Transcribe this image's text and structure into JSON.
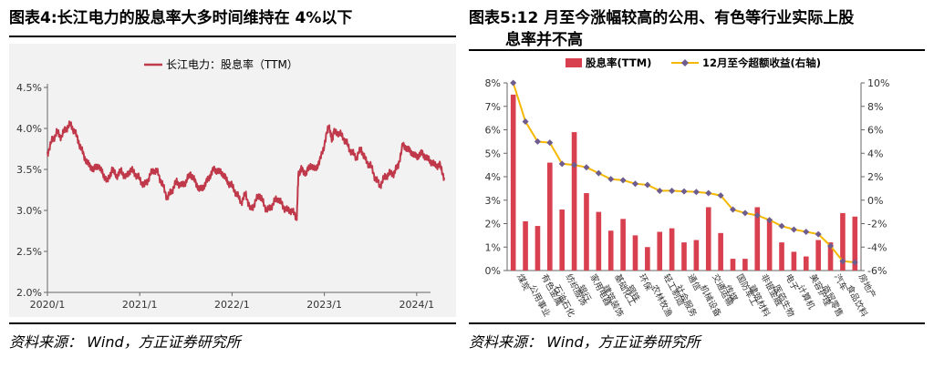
{
  "left_panel": {
    "title": "图表4:长江电力的股息率大多时间维持在 4%以下",
    "source": "资料来源： Wind，方正证券研究所"
  },
  "right_panel": {
    "title_line1": "图表5:12 月至今涨幅较高的公用、有色等行业实际上股",
    "title_line2": "息率并不高",
    "source": "资料来源： Wind，方正证券研究所"
  },
  "colors": {
    "line_red": "#c0394b",
    "bar_red": "#d9404f",
    "line_yellow": "#f5b800",
    "marker": "#6e5c8f",
    "plot_bg": "#f2f2f2"
  },
  "chart_data": [
    {
      "type": "line",
      "series": [
        {
          "name": "长江电力：股息率（TTM）",
          "points": [
            [
              2020.0,
              3.7
            ],
            [
              2020.05,
              3.85
            ],
            [
              2020.1,
              3.95
            ],
            [
              2020.15,
              3.9
            ],
            [
              2020.2,
              4.0
            ],
            [
              2020.25,
              4.05
            ],
            [
              2020.3,
              3.95
            ],
            [
              2020.35,
              3.8
            ],
            [
              2020.4,
              3.65
            ],
            [
              2020.45,
              3.55
            ],
            [
              2020.5,
              3.5
            ],
            [
              2020.55,
              3.55
            ],
            [
              2020.6,
              3.45
            ],
            [
              2020.65,
              3.35
            ],
            [
              2020.7,
              3.5
            ],
            [
              2020.75,
              3.42
            ],
            [
              2020.8,
              3.48
            ],
            [
              2020.85,
              3.4
            ],
            [
              2020.9,
              3.5
            ],
            [
              2020.95,
              3.45
            ],
            [
              2021.0,
              3.38
            ],
            [
              2021.05,
              3.3
            ],
            [
              2021.1,
              3.4
            ],
            [
              2021.15,
              3.5
            ],
            [
              2021.2,
              3.45
            ],
            [
              2021.25,
              3.3
            ],
            [
              2021.3,
              3.15
            ],
            [
              2021.35,
              3.25
            ],
            [
              2021.4,
              3.35
            ],
            [
              2021.45,
              3.3
            ],
            [
              2021.5,
              3.35
            ],
            [
              2021.55,
              3.45
            ],
            [
              2021.6,
              3.35
            ],
            [
              2021.65,
              3.25
            ],
            [
              2021.7,
              3.3
            ],
            [
              2021.75,
              3.4
            ],
            [
              2021.8,
              3.5
            ],
            [
              2021.85,
              3.48
            ],
            [
              2021.9,
              3.45
            ],
            [
              2021.95,
              3.35
            ],
            [
              2022.0,
              3.3
            ],
            [
              2022.05,
              3.2
            ],
            [
              2022.1,
              3.1
            ],
            [
              2022.15,
              3.2
            ],
            [
              2022.2,
              3.0
            ],
            [
              2022.25,
              3.1
            ],
            [
              2022.3,
              3.2
            ],
            [
              2022.35,
              3.05
            ],
            [
              2022.4,
              3.0
            ],
            [
              2022.45,
              3.1
            ],
            [
              2022.5,
              3.15
            ],
            [
              2022.55,
              3.05
            ],
            [
              2022.6,
              3.0
            ],
            [
              2022.65,
              3.0
            ],
            [
              2022.7,
              2.9
            ],
            [
              2022.72,
              3.45
            ],
            [
              2022.75,
              3.5
            ],
            [
              2022.8,
              3.45
            ],
            [
              2022.85,
              3.55
            ],
            [
              2022.9,
              3.5
            ],
            [
              2022.95,
              3.6
            ],
            [
              2023.0,
              3.8
            ],
            [
              2023.05,
              4.05
            ],
            [
              2023.08,
              3.85
            ],
            [
              2023.1,
              3.95
            ],
            [
              2023.15,
              3.95
            ],
            [
              2023.2,
              3.9
            ],
            [
              2023.25,
              3.8
            ],
            [
              2023.3,
              3.7
            ],
            [
              2023.35,
              3.65
            ],
            [
              2023.4,
              3.75
            ],
            [
              2023.45,
              3.6
            ],
            [
              2023.5,
              3.55
            ],
            [
              2023.55,
              3.4
            ],
            [
              2023.6,
              3.3
            ],
            [
              2023.65,
              3.4
            ],
            [
              2023.7,
              3.45
            ],
            [
              2023.75,
              3.45
            ],
            [
              2023.8,
              3.55
            ],
            [
              2023.85,
              3.8
            ],
            [
              2023.9,
              3.75
            ],
            [
              2023.95,
              3.7
            ],
            [
              2024.0,
              3.65
            ],
            [
              2024.05,
              3.7
            ],
            [
              2024.1,
              3.65
            ],
            [
              2024.15,
              3.6
            ],
            [
              2024.2,
              3.55
            ],
            [
              2024.25,
              3.55
            ],
            [
              2024.3,
              3.4
            ]
          ]
        }
      ],
      "x_tick_labels": [
        "2020/1",
        "2021/1",
        "2022/1",
        "2023/1",
        "2024/1"
      ],
      "x_ticks": [
        2020,
        2021,
        2022,
        2023,
        2024
      ],
      "xlim": [
        2020,
        2024.15
      ],
      "y_tick_labels": [
        "2.0%",
        "2.5%",
        "3.0%",
        "3.5%",
        "4.0%",
        "4.5%"
      ],
      "y_ticks": [
        2.0,
        2.5,
        3.0,
        3.5,
        4.0,
        4.5
      ],
      "ylim": [
        2.0,
        4.5
      ],
      "legend_position": "top-center",
      "grid": false
    },
    {
      "type": "bar",
      "categories": [
        "煤炭",
        "公用事业",
        "有色金属",
        "石油石化",
        "纺织服饰",
        "银行",
        "家用电器",
        "建筑装饰",
        "基础化工",
        "钢铁",
        "环保",
        "农林牧渔",
        "轻工制造",
        "社会服务",
        "通信",
        "机械设备",
        "交通运输",
        "传媒",
        "国防军工",
        "建筑材料",
        "非银金融",
        "医药生物",
        "电子",
        "计算机",
        "美容护理",
        "商贸零售",
        "汽车",
        "食品饮料",
        "房地产"
      ],
      "series": [
        {
          "name": "股息率(TTM)",
          "axis": "left",
          "type": "bar",
          "values": [
            7.5,
            2.1,
            1.9,
            4.6,
            2.6,
            5.9,
            3.3,
            2.5,
            1.7,
            2.2,
            1.5,
            1.0,
            1.65,
            1.8,
            1.2,
            1.3,
            2.7,
            1.6,
            0.5,
            0.5,
            2.7,
            2.2,
            1.2,
            0.8,
            0.6,
            1.3,
            1.2,
            2.45,
            2.3
          ]
        },
        {
          "name": "12月至今超额收益(右轴)",
          "axis": "right",
          "type": "line",
          "values": [
            10.0,
            6.7,
            5.0,
            4.9,
            3.1,
            3.0,
            2.8,
            2.3,
            1.8,
            1.7,
            1.4,
            1.3,
            0.8,
            0.8,
            0.75,
            0.7,
            0.6,
            0.4,
            -0.8,
            -1.1,
            -1.3,
            -1.7,
            -2.2,
            -2.5,
            -2.7,
            -2.9,
            -3.9,
            -5.2,
            -5.3
          ]
        }
      ],
      "y_left_tick_labels": [
        "0%",
        "1%",
        "2%",
        "3%",
        "4%",
        "5%",
        "6%",
        "7%",
        "8%"
      ],
      "ylim_left": [
        0,
        8
      ],
      "y_right_tick_labels": [
        "-6%",
        "-4%",
        "-2%",
        "0%",
        "2%",
        "4%",
        "6%",
        "8%",
        "10%"
      ],
      "ylim_right": [
        -6,
        10
      ],
      "legend_position": "top-center",
      "grid": false
    }
  ]
}
